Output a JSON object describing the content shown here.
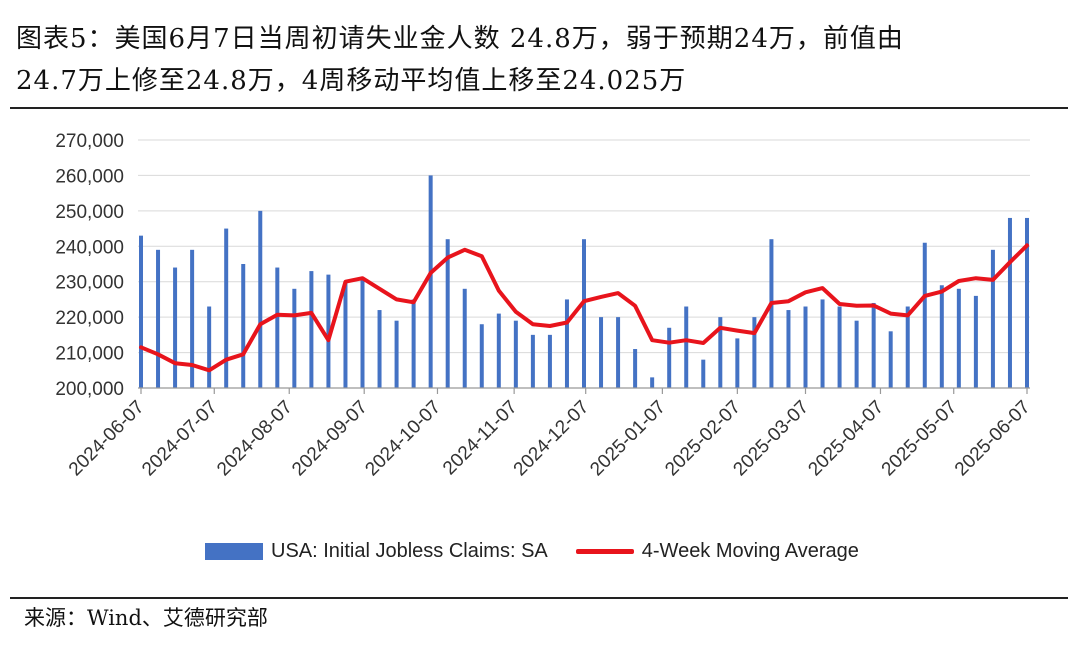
{
  "title": {
    "line1": "图表5：美国6月7日当周初请失业金人数 24.8万，弱于预期24万，前值由",
    "line2": "24.7万上修至24.8万，4周移动平均值上移至24.025万"
  },
  "source": "来源：Wind、艾德研究部",
  "colors": {
    "bar": "#4472c4",
    "line": "#e8141c",
    "grid": "#d9d9d9"
  },
  "chart_data": {
    "type": "bar+line",
    "ylim": [
      200000,
      270000
    ],
    "yticks": [
      "200,000",
      "210,000",
      "220,000",
      "230,000",
      "240,000",
      "250,000",
      "260,000",
      "270,000"
    ],
    "ytick_values": [
      200000,
      210000,
      220000,
      230000,
      240000,
      250000,
      260000,
      270000
    ],
    "xtick_labels": [
      "2024-06-07",
      "2024-07-07",
      "2024-08-07",
      "2024-09-07",
      "2024-10-07",
      "2024-11-07",
      "2024-12-07",
      "2025-01-07",
      "2025-02-07",
      "2025-03-07",
      "2025-04-07",
      "2025-05-07",
      "2025-06-07"
    ],
    "xtick_week_index": [
      0,
      4.3,
      8.7,
      13.1,
      17.4,
      21.9,
      26.1,
      30.6,
      35.0,
      39.0,
      43.4,
      47.7,
      52.0
    ],
    "series": [
      {
        "name": "USA: Initial Jobless Claims: SA",
        "kind": "bar",
        "values": [
          243000,
          239000,
          234000,
          239000,
          223000,
          245000,
          235000,
          250000,
          234000,
          228000,
          233000,
          232000,
          230000,
          231000,
          222000,
          219000,
          225000,
          260000,
          242000,
          228000,
          218000,
          221000,
          219000,
          215000,
          215000,
          225000,
          242000,
          220000,
          220000,
          211000,
          203000,
          217000,
          223000,
          208000,
          220000,
          214000,
          220000,
          242000,
          222000,
          223000,
          225000,
          223000,
          219000,
          224000,
          216000,
          223000,
          241000,
          229000,
          228000,
          226000,
          239000,
          248000,
          248000
        ]
      },
      {
        "name": "4-Week Moving Average",
        "kind": "line",
        "values": [
          211500,
          209500,
          207000,
          206500,
          205000,
          208000,
          209500,
          218000,
          220700,
          220500,
          221200,
          213500,
          230000,
          231000,
          228000,
          225000,
          224200,
          232500,
          236800,
          239000,
          237200,
          227500,
          221500,
          218000,
          217500,
          218500,
          224500,
          225700,
          226800,
          223200,
          213500,
          212800,
          213500,
          212700,
          217000,
          216200,
          215500,
          224000,
          224500,
          227000,
          228200,
          223700,
          223200,
          223300,
          221000,
          220500,
          226000,
          227200,
          230200,
          231000,
          230500,
          235500,
          240250
        ]
      }
    ]
  }
}
